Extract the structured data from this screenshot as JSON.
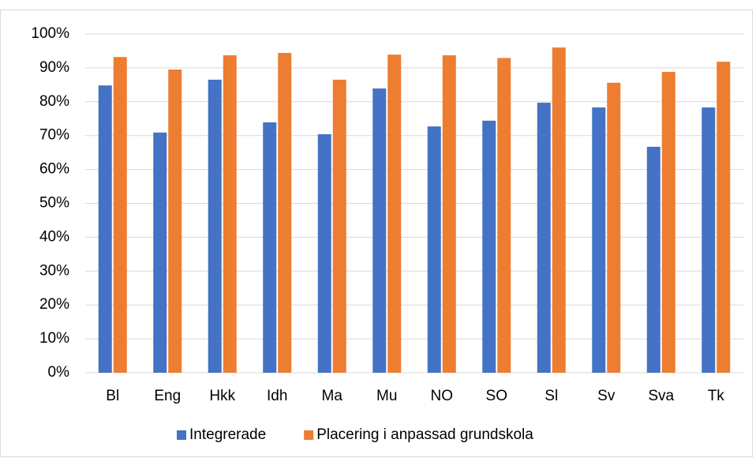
{
  "chart_data": {
    "type": "bar",
    "categories": [
      "Bl",
      "Eng",
      "Hkk",
      "Idh",
      "Ma",
      "Mu",
      "NO",
      "SO",
      "Sl",
      "Sv",
      "Sva",
      "Tk"
    ],
    "series": [
      {
        "name": "Integrerade",
        "color": "#4472c4",
        "values": [
          84.8,
          70.9,
          86.5,
          73.9,
          70.4,
          83.9,
          72.7,
          74.4,
          79.7,
          78.3,
          66.7,
          78.3
        ]
      },
      {
        "name": "Placering i anpassad grundskola",
        "color": "#ed7d31",
        "values": [
          93.2,
          89.5,
          93.7,
          94.4,
          86.5,
          93.9,
          93.7,
          92.9,
          96.0,
          85.6,
          88.8,
          91.8
        ]
      }
    ],
    "ylim": [
      0,
      100
    ],
    "yticks": [
      {
        "value": 0,
        "label": "0%"
      },
      {
        "value": 10,
        "label": "10%"
      },
      {
        "value": 20,
        "label": "20%"
      },
      {
        "value": 30,
        "label": "30%"
      },
      {
        "value": 40,
        "label": "40%"
      },
      {
        "value": 50,
        "label": "50%"
      },
      {
        "value": 60,
        "label": "60%"
      },
      {
        "value": 70,
        "label": "70%"
      },
      {
        "value": 80,
        "label": "80%"
      },
      {
        "value": 90,
        "label": "90%"
      },
      {
        "value": 100,
        "label": "100%"
      }
    ],
    "grid": true,
    "legend": "bottom"
  }
}
